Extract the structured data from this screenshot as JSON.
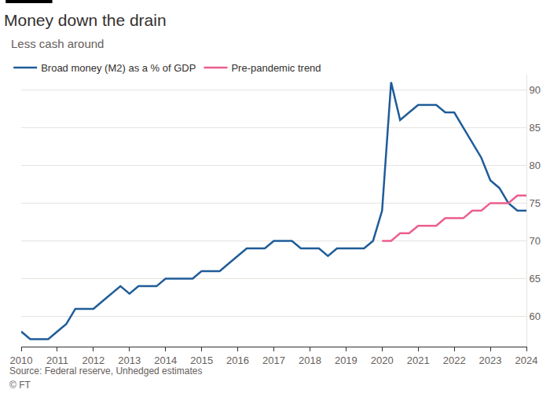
{
  "chart_data": {
    "type": "line",
    "title": "Money down the drain",
    "subtitle": "Less cash around",
    "source": "Source: Federal reserve, Unhedged estimates",
    "copyright": "© FT",
    "x": [
      2010,
      2010.25,
      2010.5,
      2010.75,
      2011,
      2011.25,
      2011.5,
      2011.75,
      2012,
      2012.25,
      2012.5,
      2012.75,
      2013,
      2013.25,
      2013.5,
      2013.75,
      2014,
      2014.25,
      2014.5,
      2014.75,
      2015,
      2015.25,
      2015.5,
      2015.75,
      2016,
      2016.25,
      2016.5,
      2016.75,
      2017,
      2017.25,
      2017.5,
      2017.75,
      2018,
      2018.25,
      2018.5,
      2018.75,
      2019,
      2019.25,
      2019.5,
      2019.75,
      2020,
      2020.25,
      2020.5,
      2020.75,
      2021,
      2021.25,
      2021.5,
      2021.75,
      2022,
      2022.25,
      2022.5,
      2022.75,
      2023,
      2023.25,
      2023.5,
      2023.75,
      2024
    ],
    "series": [
      {
        "name": "Broad money (M2) as a % of GDP",
        "color": "#1f5c99",
        "values": [
          58,
          57,
          57,
          57,
          58,
          59,
          61,
          61,
          61,
          62,
          63,
          64,
          63,
          64,
          64,
          64,
          65,
          65,
          65,
          65,
          66,
          66,
          66,
          67,
          68,
          69,
          69,
          69,
          70,
          70,
          70,
          69,
          69,
          69,
          68,
          69,
          69,
          69,
          69,
          70,
          74,
          91,
          86,
          87,
          88,
          88,
          88,
          87,
          87,
          85,
          83,
          81,
          78,
          77,
          75,
          74,
          74
        ]
      },
      {
        "name": "Pre-pandemic trend",
        "color": "#eb5e8d",
        "values": [
          null,
          null,
          null,
          null,
          null,
          null,
          null,
          null,
          null,
          null,
          null,
          null,
          null,
          null,
          null,
          null,
          null,
          null,
          null,
          null,
          null,
          null,
          null,
          null,
          null,
          null,
          null,
          null,
          null,
          null,
          null,
          null,
          null,
          null,
          null,
          null,
          null,
          null,
          null,
          null,
          70,
          70,
          71,
          71,
          72,
          72,
          72,
          73,
          73,
          73,
          74,
          74,
          75,
          75,
          75,
          76,
          76
        ]
      }
    ],
    "xlim": [
      2010,
      2024
    ],
    "xticks": [
      2010,
      2011,
      2012,
      2013,
      2014,
      2015,
      2016,
      2017,
      2018,
      2019,
      2020,
      2021,
      2022,
      2023,
      2024
    ],
    "ylim": [
      56,
      92
    ],
    "yticks": [
      60,
      65,
      70,
      75,
      80,
      85,
      90
    ],
    "grid": true,
    "legend": "top left"
  }
}
